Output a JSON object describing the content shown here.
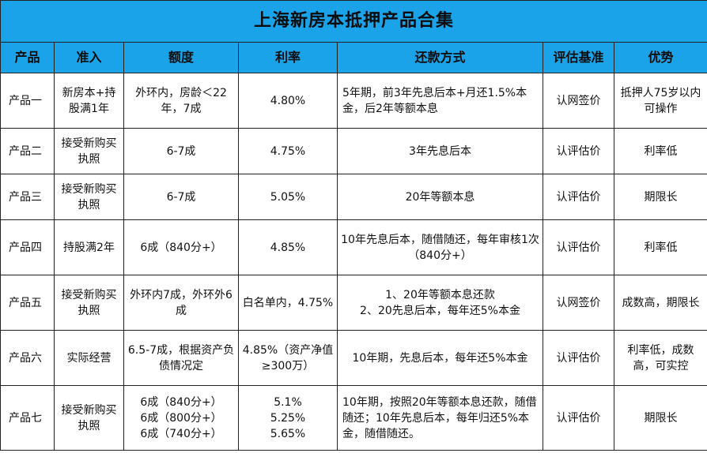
{
  "title": "上海新房本抵押产品合集",
  "headers": [
    "产品",
    "准入",
    "额度",
    "利率",
    "还款方式",
    "评估基准",
    "优势"
  ],
  "rows": [
    {
      "product": "产品一",
      "access": "新房本+持股满1年",
      "amount": "外环内，房龄＜22年，7成",
      "rate": "4.80%",
      "repayment": "5年期，前3年先息后本+月还1.5%本金，后2年等额本息",
      "basis": "认网签价",
      "advantage": "抵押人75岁以内可操作"
    },
    {
      "product": "产品二",
      "access": "接受新购买执照",
      "amount": "6-7成",
      "rate": "4.75%",
      "repayment": "3年先息后本",
      "basis": "认评估价",
      "advantage": "利率低"
    },
    {
      "product": "产品三",
      "access": "接受新购买执照",
      "amount": "6-7成",
      "rate": "5.05%",
      "repayment": "20年等额本息",
      "basis": "认评估价",
      "advantage": "期限长"
    },
    {
      "product": "产品四",
      "access": "持股满2年",
      "amount": "6成（840分+）",
      "rate": "4.85%",
      "repayment": "10年先息后本，随借随还，每年审核1次（840分+）",
      "basis": "认评估价",
      "advantage": "利率低"
    },
    {
      "product": "产品五",
      "access": "接受新购买执照",
      "amount": "外环内7成，外环外6成",
      "rate": "白名单内，4.75%",
      "repayment_lines": [
        "1、20年等额本息还款",
        "2、20先息后本，每年还5%本金"
      ],
      "basis": "认网签价",
      "advantage": "成数高，期限长"
    },
    {
      "product": "产品六",
      "access": "实际经营",
      "amount": "6.5-7成，根据资产负债情况定",
      "rate": "4.85%（资产净值≥300万）",
      "repayment": "10年期，先息后本，每年还5%本金",
      "basis": "认评估价",
      "advantage": "利率低，成数高，可实控"
    },
    {
      "product": "产品七",
      "access": "接受新购买执照",
      "amount_lines": [
        "6成（840分+）",
        "6成（800分+）",
        "6成（740分+）"
      ],
      "rate_lines": [
        "5.1%",
        "5.25%",
        "5.65%"
      ],
      "repayment": "10年期，按照20年等额本息还款，随借随还；10年先息后本，每年归还5%本金，随借随还。",
      "basis": "认评估价",
      "advantage": "期限长"
    }
  ]
}
